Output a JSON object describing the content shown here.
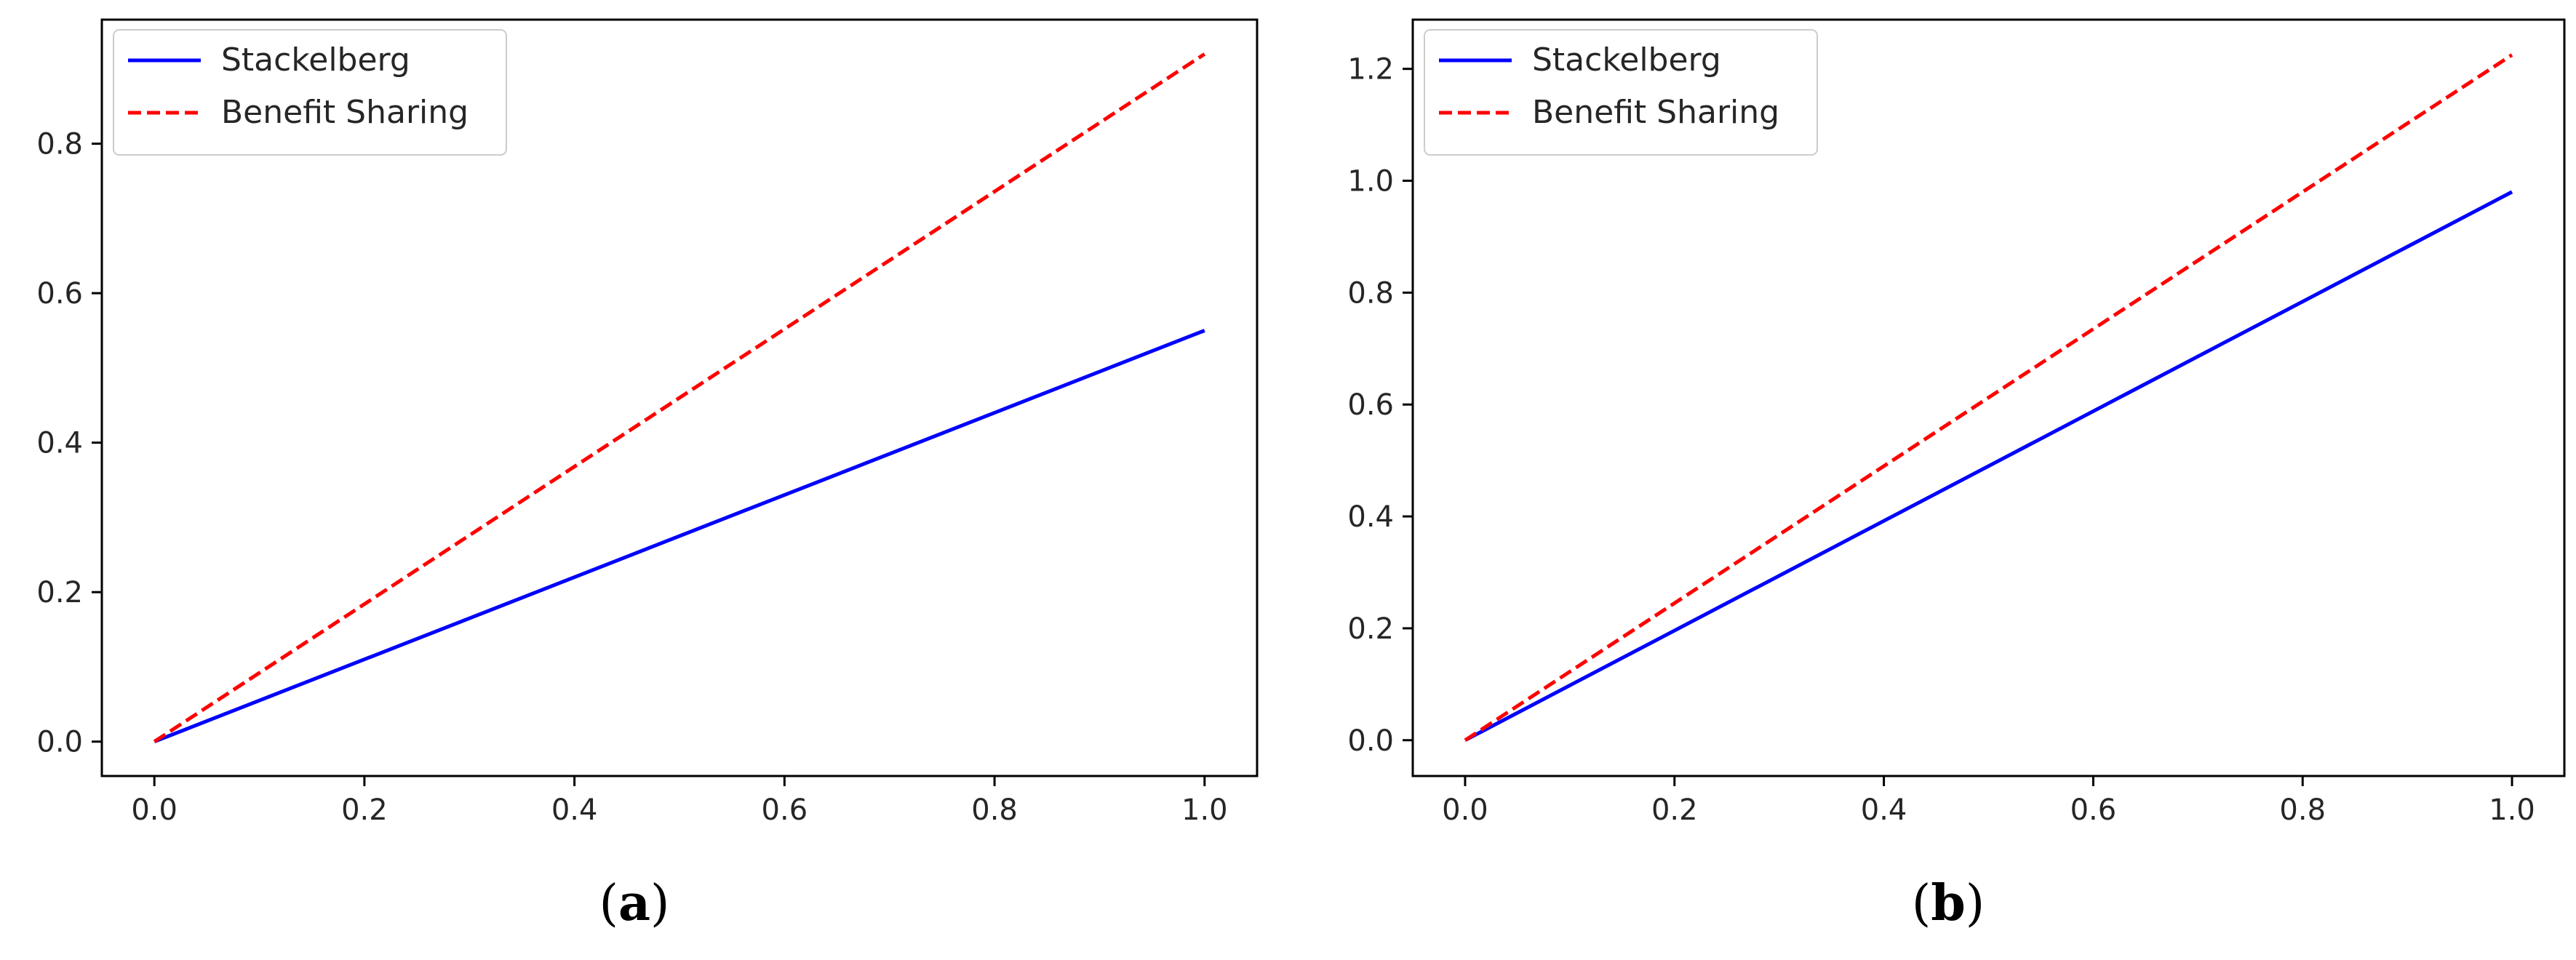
{
  "chart_data": [
    {
      "type": "line",
      "panel_label": "a",
      "x": [
        0.0,
        1.0
      ],
      "series": [
        {
          "name": "Stackelberg",
          "values": [
            0.0,
            0.55
          ],
          "color": "#0000ff",
          "style": "solid"
        },
        {
          "name": "Benefit Sharing",
          "values": [
            0.0,
            0.92
          ],
          "color": "#ff0000",
          "style": "dashed"
        }
      ],
      "xlim": [
        -0.05,
        1.05
      ],
      "ylim": [
        -0.046,
        0.966
      ],
      "xticks": [
        {
          "value": 0.0,
          "label": "0.0"
        },
        {
          "value": 0.2,
          "label": "0.2"
        },
        {
          "value": 0.4,
          "label": "0.4"
        },
        {
          "value": 0.6,
          "label": "0.6"
        },
        {
          "value": 0.8,
          "label": "0.8"
        },
        {
          "value": 1.0,
          "label": "1.0"
        }
      ],
      "yticks": [
        {
          "value": 0.0,
          "label": "0.0"
        },
        {
          "value": 0.2,
          "label": "0.2"
        },
        {
          "value": 0.4,
          "label": "0.4"
        },
        {
          "value": 0.6,
          "label": "0.6"
        },
        {
          "value": 0.8,
          "label": "0.8"
        }
      ],
      "grid": false,
      "legend": "top-left"
    },
    {
      "type": "line",
      "panel_label": "b",
      "x": [
        0.0,
        1.0
      ],
      "series": [
        {
          "name": "Stackelberg",
          "values": [
            0.0,
            0.98
          ],
          "color": "#0000ff",
          "style": "solid"
        },
        {
          "name": "Benefit Sharing",
          "values": [
            0.0,
            1.225
          ],
          "color": "#ff0000",
          "style": "dashed"
        }
      ],
      "xlim": [
        -0.05,
        1.05
      ],
      "ylim": [
        -0.064,
        1.288
      ],
      "xticks": [
        {
          "value": 0.0,
          "label": "0.0"
        },
        {
          "value": 0.2,
          "label": "0.2"
        },
        {
          "value": 0.4,
          "label": "0.4"
        },
        {
          "value": 0.6,
          "label": "0.6"
        },
        {
          "value": 0.8,
          "label": "0.8"
        },
        {
          "value": 1.0,
          "label": "1.0"
        }
      ],
      "yticks": [
        {
          "value": 0.0,
          "label": "0.0"
        },
        {
          "value": 0.2,
          "label": "0.2"
        },
        {
          "value": 0.4,
          "label": "0.4"
        },
        {
          "value": 0.6,
          "label": "0.6"
        },
        {
          "value": 0.8,
          "label": "0.8"
        },
        {
          "value": 1.0,
          "label": "1.0"
        },
        {
          "value": 1.2,
          "label": "1.2"
        }
      ],
      "grid": false,
      "legend": "top-left"
    }
  ]
}
